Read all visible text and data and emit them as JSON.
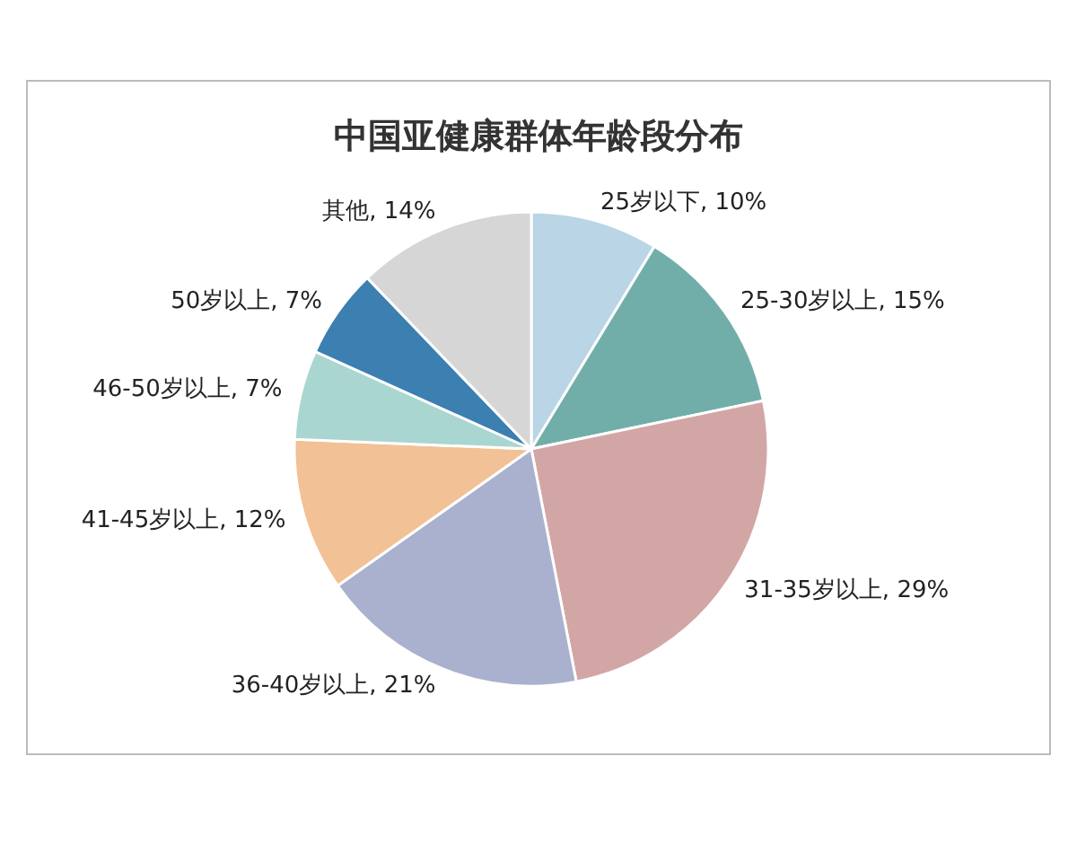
{
  "chart_data": {
    "type": "pie",
    "title": "中国亚健康群体年龄段分布",
    "categories": [
      "25岁以下",
      "25-30岁以上",
      "31-35岁以上",
      "36-40岁以上",
      "41-45岁以上",
      "46-50岁以上",
      "50岁以上",
      "其他"
    ],
    "values": [
      10,
      15,
      29,
      21,
      12,
      7,
      7,
      14
    ],
    "value_labels": [
      "10%",
      "15%",
      "29%",
      "21%",
      "12%",
      "7%",
      "7%",
      "14%"
    ],
    "colors": [
      "#b9d5e6",
      "#72aea9",
      "#d3a6a6",
      "#aab1ce",
      "#f2c196",
      "#a9d6d0",
      "#3c7fb1",
      "#d6d6d6"
    ],
    "legend": false
  }
}
